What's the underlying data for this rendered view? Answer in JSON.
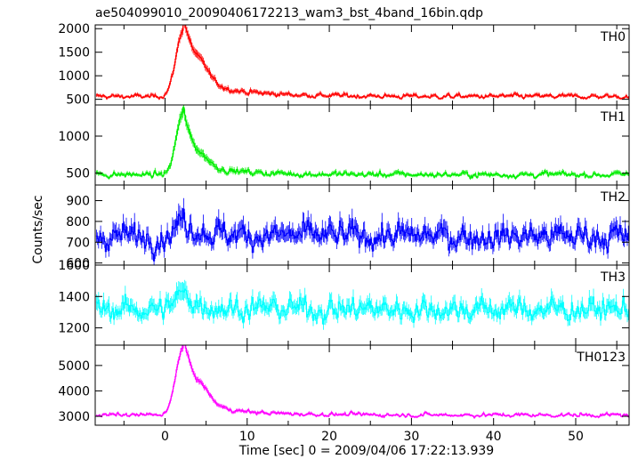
{
  "chart_data": {
    "type": "line",
    "title": "ae504099010_20090406172213_wam3_bst_4band_16bin.qdp",
    "xlabel": "Time [sec] 0 = 2009/04/06 17:22:13.939",
    "ylabel": "Counts/sec",
    "xlim": [
      -8.5,
      56.5
    ],
    "xticks": [
      0,
      10,
      20,
      30,
      40,
      50
    ],
    "grid": false,
    "legend": "none",
    "panels": [
      {
        "name": "TH0",
        "color": "#ff0000",
        "ylim": [
          380,
          2080
        ],
        "yticks": [
          500,
          1000,
          1500,
          2000
        ],
        "baseline": 560,
        "noise": 45,
        "peak": {
          "t": 2.2,
          "height": 1430,
          "rise": 0.9,
          "decay": 1.6
        },
        "tail": {
          "height": 260,
          "decay": 7
        },
        "hump": {
          "t": 4.5,
          "height": 200,
          "width": 0.9
        }
      },
      {
        "name": "TH1",
        "color": "#00ee00",
        "ylim": [
          340,
          1420
        ],
        "yticks": [
          500,
          1000
        ],
        "baseline": 480,
        "noise": 35,
        "peak": {
          "t": 2.1,
          "height": 820,
          "rise": 0.8,
          "decay": 1.3
        },
        "tail": {
          "height": 120,
          "decay": 6
        },
        "hump": {
          "t": 4.6,
          "height": 70,
          "width": 0.9
        }
      },
      {
        "name": "TH2",
        "color": "#0000ff",
        "ylim": [
          590,
          975
        ],
        "yticks": [
          600,
          700,
          800,
          900
        ],
        "baseline": 730,
        "noise": 55,
        "peak": {
          "t": 2.0,
          "height": 70,
          "rise": 0.8,
          "decay": 1.5
        },
        "tail": {
          "height": 20,
          "decay": 6
        },
        "hump": {
          "t": 4.5,
          "height": 0,
          "width": 1
        }
      },
      {
        "name": "TH3",
        "color": "#00ffff",
        "ylim": [
          1090,
          1600
        ],
        "yticks": [
          1200,
          1400,
          1600
        ],
        "baseline": 1320,
        "noise": 65,
        "peak": {
          "t": 2.0,
          "height": 90,
          "rise": 0.8,
          "decay": 1.5
        },
        "tail": {
          "height": 20,
          "decay": 6
        },
        "hump": {
          "t": 4.5,
          "height": 0,
          "width": 1
        }
      },
      {
        "name": "TH0123",
        "color": "#ff00ff",
        "ylim": [
          2650,
          5800
        ],
        "yticks": [
          3000,
          4000,
          5000
        ],
        "baseline": 3050,
        "noise": 70,
        "peak": {
          "t": 2.2,
          "height": 2700,
          "rise": 0.9,
          "decay": 1.5
        },
        "tail": {
          "height": 380,
          "decay": 6.5
        },
        "hump": {
          "t": 4.6,
          "height": 350,
          "width": 0.9
        }
      }
    ],
    "bin_width": 0.125
  }
}
